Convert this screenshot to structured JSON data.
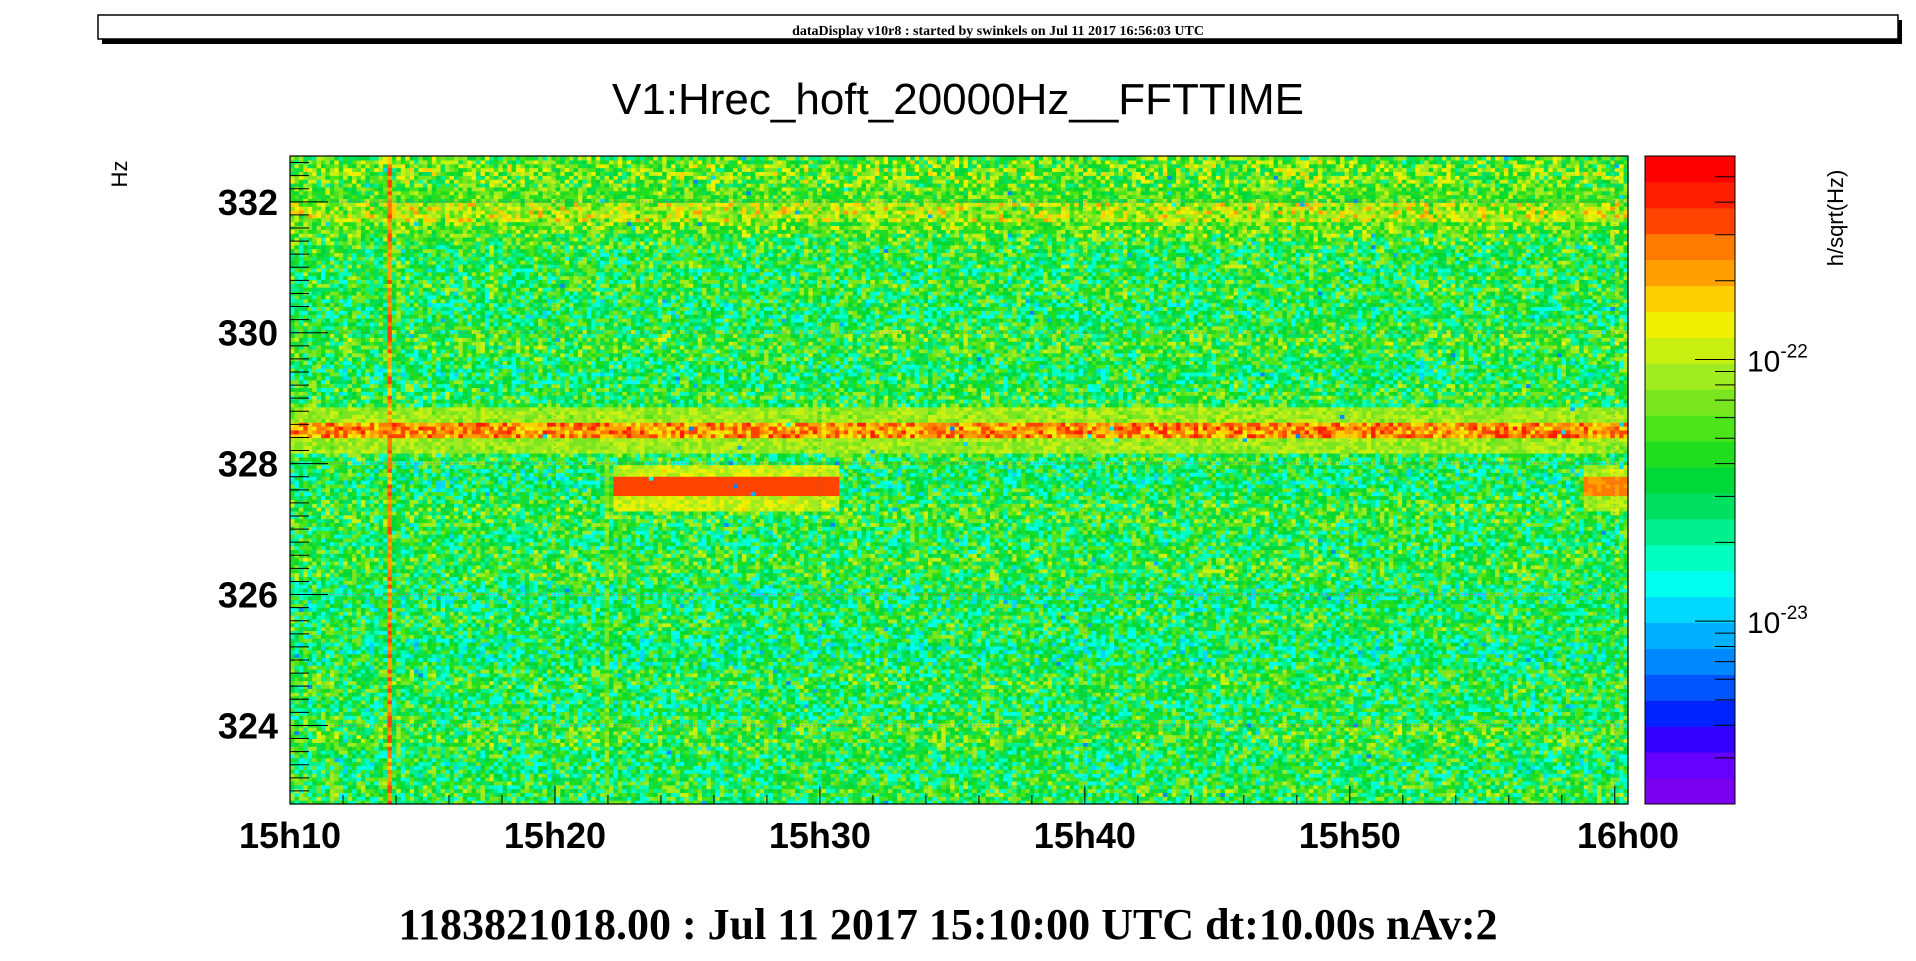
{
  "window": {
    "banner": "dataDisplay v10r8 : started by swinkels on Jul 11 2017 16:56:03 UTC"
  },
  "chart_data": {
    "type": "heatmap",
    "title": "V1:Hrec_hoft_20000Hz__FFTTIME",
    "ylabel": "Hz",
    "zlabel": "h/sqrt(Hz)",
    "footer": "1183821018.00 : Jul 11 2017 15:10:00 UTC dt:10.00s nAv:2",
    "x_ticks": [
      "15h10",
      "15h20",
      "15h30",
      "15h40",
      "15h50",
      "16h00"
    ],
    "x_tick_minutes": [
      0,
      10,
      20,
      30,
      40,
      50
    ],
    "xlim_minutes": [
      0,
      50.5
    ],
    "y_ticks": [
      "324",
      "326",
      "328",
      "330",
      "332"
    ],
    "y_tick_values": [
      324,
      326,
      328,
      330,
      332
    ],
    "ylim": [
      322.8,
      332.7
    ],
    "z_scale": "log",
    "z_ticks": [
      {
        "base": "10",
        "exp": "-22",
        "value": 1e-22
      },
      {
        "base": "10",
        "exp": "-23",
        "value": 1e-23
      }
    ],
    "zlim": [
      2e-24,
      6e-22
    ],
    "palette": [
      "#7a00f0",
      "#6600ff",
      "#3300ff",
      "#0022ff",
      "#0055ff",
      "#0088ff",
      "#00b0ff",
      "#00d8ff",
      "#00ffee",
      "#00ffc0",
      "#00f090",
      "#00e060",
      "#00d838",
      "#20dd20",
      "#4ce41a",
      "#7ae620",
      "#a0ec20",
      "#c8f010",
      "#f0f000",
      "#ffd000",
      "#ffa000",
      "#ff7a00",
      "#ff4400",
      "#ff1e00",
      "#ff0000"
    ],
    "features": [
      {
        "kind": "line",
        "freq": 331.85,
        "t0": 0,
        "t1": 50.5,
        "level": 0.66,
        "noise": 0.16
      },
      {
        "kind": "line",
        "freq": 328.5,
        "t0": 0,
        "t1": 50.5,
        "level": 0.84,
        "noise": 0.1
      },
      {
        "kind": "line",
        "freq": 327.65,
        "t0": 12.2,
        "t1": 20.7,
        "level": 0.9,
        "noise": 0.02
      },
      {
        "kind": "line",
        "freq": 327.65,
        "t0": 48.8,
        "t1": 50.5,
        "level": 0.85,
        "noise": 0.03
      },
      {
        "kind": "glitch",
        "t": 3.8,
        "fmin": 322.8,
        "fmax": 332.7,
        "level": 0.85
      },
      {
        "kind": "glitch",
        "t": 11.9,
        "fmin": 322.8,
        "fmax": 328.2,
        "level": 0.6
      },
      {
        "kind": "glitch",
        "t": 12.5,
        "fmin": 322.8,
        "fmax": 328.2,
        "level": 0.55
      }
    ]
  }
}
